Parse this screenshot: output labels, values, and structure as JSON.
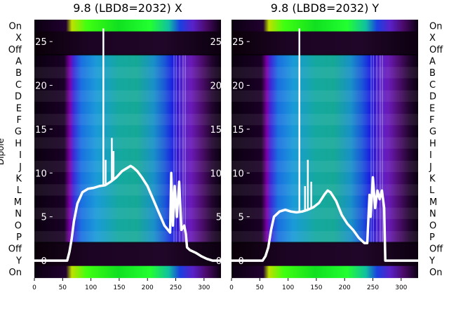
{
  "chart_data": [
    {
      "type": "heatmap",
      "title": "9.8 (LBD8=2032) X",
      "ylabel": "Dipole",
      "xlim": [
        0,
        330
      ],
      "ylim": [
        -2,
        27.5
      ],
      "x_ticks": [
        0,
        50,
        100,
        150,
        200,
        250,
        300
      ],
      "y_ticks": [
        0,
        5,
        10,
        15,
        20,
        25
      ],
      "row_labels": [
        "On",
        "X",
        "Off",
        "A",
        "B",
        "C",
        "D",
        "E",
        "F",
        "G",
        "H",
        "I",
        "J",
        "K",
        "L",
        "M",
        "N",
        "O",
        "P",
        "Off",
        "Y",
        "On"
      ],
      "line": {
        "x": [
          0,
          58,
          62,
          66,
          70,
          76,
          85,
          95,
          105,
          115,
          125,
          135,
          145,
          155,
          165,
          170,
          175,
          182,
          190,
          200,
          210,
          220,
          230,
          240,
          242,
          245,
          248,
          252,
          256,
          260,
          265,
          268,
          270,
          275,
          285,
          295,
          305,
          315,
          320,
          325,
          330
        ],
        "y": [
          0,
          0,
          1,
          2.5,
          4.5,
          6.5,
          7.8,
          8.2,
          8.3,
          8.5,
          8.6,
          9,
          9.5,
          10.2,
          10.6,
          10.8,
          10.6,
          10.2,
          9.5,
          8.5,
          7,
          5.5,
          4,
          3.2,
          10,
          4,
          8.5,
          5,
          9,
          3.5,
          4,
          3,
          1.5,
          1.2,
          0.9,
          0.5,
          0.2,
          0,
          0,
          0,
          0
        ],
        "spikes": [
          {
            "x": 122,
            "y": 26.5
          },
          {
            "x": 126,
            "y": 11.5
          },
          {
            "x": 137,
            "y": 14
          },
          {
            "x": 140,
            "y": 12.5
          }
        ]
      }
    },
    {
      "type": "heatmap",
      "title": "9.8 (LBD8=2032) Y",
      "xlim": [
        0,
        330
      ],
      "ylim": [
        -2,
        27.5
      ],
      "x_ticks": [
        0,
        50,
        100,
        150,
        200,
        250,
        300
      ],
      "y_ticks": [
        0,
        5,
        10,
        15,
        20,
        25
      ],
      "row_labels": [
        "On",
        "X",
        "Off",
        "A",
        "B",
        "C",
        "D",
        "E",
        "F",
        "G",
        "H",
        "I",
        "J",
        "K",
        "L",
        "M",
        "N",
        "O",
        "P",
        "Off",
        "Y",
        "On"
      ],
      "line": {
        "x": [
          0,
          55,
          60,
          65,
          70,
          75,
          85,
          95,
          105,
          115,
          125,
          135,
          145,
          155,
          165,
          170,
          175,
          185,
          195,
          205,
          215,
          225,
          235,
          240,
          244,
          246,
          250,
          254,
          258,
          262,
          266,
          270,
          272,
          280,
          300,
          330
        ],
        "y": [
          0,
          0,
          0.5,
          1.5,
          3.5,
          5,
          5.6,
          5.8,
          5.6,
          5.5,
          5.6,
          5.8,
          6.1,
          6.6,
          7.6,
          8,
          7.8,
          6.8,
          5.2,
          4.2,
          3.5,
          2.6,
          2,
          2,
          7.5,
          5,
          9.5,
          6,
          8,
          7,
          8,
          6,
          0,
          0,
          0,
          0
        ],
        "spikes": [
          {
            "x": 120,
            "y": 26.5
          },
          {
            "x": 130,
            "y": 8.5
          },
          {
            "x": 135,
            "y": 11.5
          },
          {
            "x": 141,
            "y": 9
          }
        ]
      }
    }
  ]
}
